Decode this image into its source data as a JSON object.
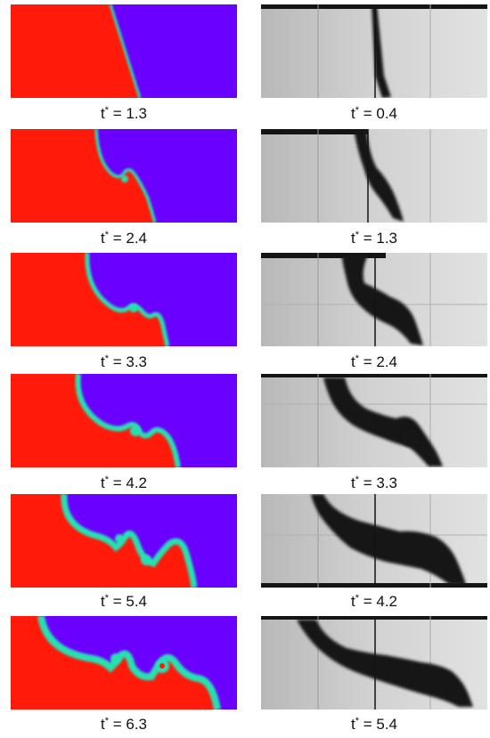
{
  "colors": {
    "heavy_fluid": "#ff1a0a",
    "light_fluid": "#6a00ff",
    "interface": "#28e0b0",
    "photo_light": "#e0e0e0",
    "photo_dark": "#141414"
  },
  "simulation": {
    "label_prefix": "t",
    "label_sup": "*",
    "frames": [
      {
        "label": " = 1.3"
      },
      {
        "label": " = 2.4"
      },
      {
        "label": " = 3.3"
      },
      {
        "label": " = 4.2"
      },
      {
        "label": " = 5.4"
      },
      {
        "label": " = 6.3"
      }
    ]
  },
  "experiment": {
    "label_prefix": "t",
    "label_sup": "*",
    "frames": [
      {
        "label": " = 0.4"
      },
      {
        "label": " = 1.3"
      },
      {
        "label": " = 2.4"
      },
      {
        "label": " = 3.3"
      },
      {
        "label": " = 4.2"
      },
      {
        "label": " = 5.4"
      }
    ]
  }
}
